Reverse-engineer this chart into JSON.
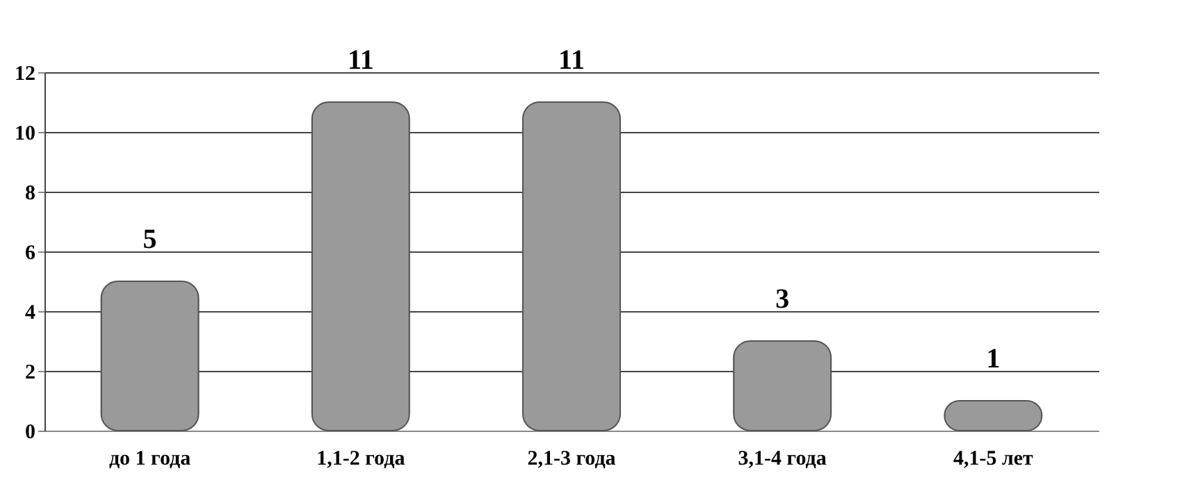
{
  "chart_data": {
    "type": "bar",
    "categories": [
      "до 1 года",
      "1,1-2 года",
      "2,1-3 года",
      "3,1-4 года",
      "4,1-5 лет"
    ],
    "values": [
      5,
      11,
      11,
      3,
      1
    ],
    "color": "#9a9a9a",
    "ylim": [
      0,
      12
    ],
    "yticks": [
      0,
      2,
      4,
      6,
      8,
      10,
      12
    ],
    "grid": "y",
    "data_labels": true
  }
}
